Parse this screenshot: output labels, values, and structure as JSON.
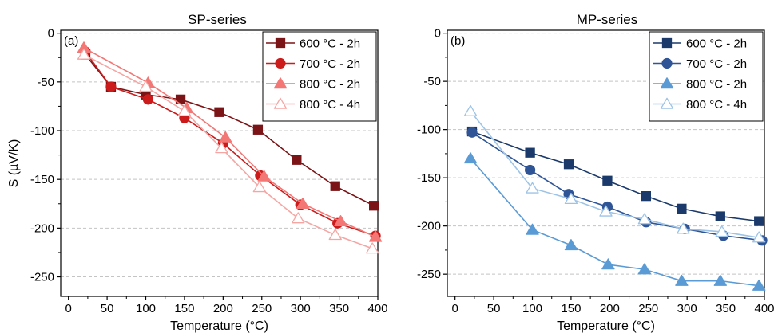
{
  "chart_data": [
    {
      "type": "line",
      "title": "SP-series",
      "panel_label": "(a)",
      "xlabel": "Temperature (°C)",
      "ylabel": "S (µV/K)",
      "xlim": [
        -10,
        400
      ],
      "ylim": [
        -270,
        3
      ],
      "xticks": [
        0,
        50,
        100,
        150,
        200,
        250,
        300,
        350,
        400
      ],
      "yticks": [
        0,
        -50,
        -100,
        -150,
        -200,
        -250
      ],
      "grid": "horizontal-dashed",
      "legend_position": "top-right",
      "series": [
        {
          "name": "600 °C - 2h",
          "marker": "square",
          "filled": true,
          "color": "#7b1416",
          "x": [
            22,
            55,
            100,
            145,
            195,
            245,
            295,
            345,
            395
          ],
          "y": [
            -22,
            -55,
            -63,
            -68,
            -81,
            -99,
            -130,
            -157,
            -177
          ]
        },
        {
          "name": "700 °C - 2h",
          "marker": "circle",
          "filled": true,
          "color": "#cc1b1b",
          "x": [
            22,
            55,
            103,
            150,
            200,
            248,
            300,
            348,
            397
          ],
          "y": [
            -19,
            -55,
            -68,
            -87,
            -113,
            -146,
            -176,
            -195,
            -208
          ]
        },
        {
          "name": "800 °C - 2h",
          "marker": "triangle",
          "filled": true,
          "color": "#f27775",
          "x": [
            20,
            103,
            153,
            203,
            253,
            303,
            352,
            397
          ],
          "y": [
            -15,
            -51,
            -77,
            -107,
            -147,
            -175,
            -193,
            -209
          ]
        },
        {
          "name": "800 °C - 4h",
          "marker": "triangle",
          "filled": false,
          "color": "#f5a6a3",
          "x": [
            20,
            100,
            150,
            198,
            247,
            297,
            345,
            393
          ],
          "y": [
            -22,
            -55,
            -80,
            -118,
            -158,
            -190,
            -207,
            -221
          ]
        }
      ]
    },
    {
      "type": "line",
      "title": "MP-series",
      "panel_label": "(b)",
      "xlabel": "Temperature (°C)",
      "ylabel": "",
      "xlim": [
        -10,
        400
      ],
      "ylim": [
        -273,
        3
      ],
      "xticks": [
        0,
        50,
        100,
        150,
        200,
        250,
        300,
        350,
        400
      ],
      "yticks": [
        0,
        -50,
        -100,
        -150,
        -200,
        -250
      ],
      "grid": "horizontal-dashed",
      "legend_position": "top-right",
      "series": [
        {
          "name": "600 °C - 2h",
          "marker": "square",
          "filled": true,
          "color": "#1b3a6b",
          "x": [
            22,
            97,
            147,
            197,
            247,
            293,
            343,
            393
          ],
          "y": [
            -102,
            -124,
            -136,
            -153,
            -169,
            -182,
            -190,
            -195
          ]
        },
        {
          "name": "700 °C - 2h",
          "marker": "circle",
          "filled": true,
          "color": "#2f5597",
          "x": [
            22,
            97,
            147,
            197,
            247,
            297,
            347,
            397
          ],
          "y": [
            -103,
            -142,
            -167,
            -180,
            -196,
            -203,
            -210,
            -215
          ]
        },
        {
          "name": "800 °C - 2h",
          "marker": "triangle",
          "filled": true,
          "color": "#5b9bd5",
          "x": [
            20,
            100,
            150,
            198,
            245,
            293,
            343,
            393
          ],
          "y": [
            -130,
            -204,
            -220,
            -240,
            -245,
            -257,
            -257,
            -262
          ]
        },
        {
          "name": "800 °C - 4h",
          "marker": "triangle",
          "filled": false,
          "color": "#9dc3e6",
          "x": [
            20,
            100,
            150,
            195,
            245,
            295,
            345,
            393
          ],
          "y": [
            -81,
            -161,
            -172,
            -185,
            -193,
            -203,
            -206,
            -212
          ]
        }
      ]
    }
  ]
}
